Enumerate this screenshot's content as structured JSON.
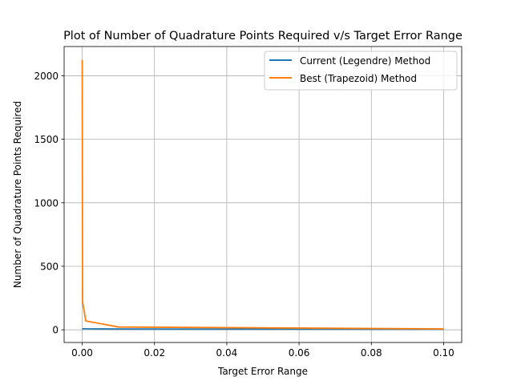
{
  "chart_data": {
    "type": "line",
    "title": "Plot of Number of Quadrature Points Required v/s Target Error Range",
    "xlabel": "Target Error Range",
    "ylabel": "Number of Quadrature Points Required",
    "xlim": [
      -0.005,
      0.105
    ],
    "ylim": [
      -100,
      2230
    ],
    "xticks": [
      0.0,
      0.02,
      0.04,
      0.06,
      0.08,
      0.1
    ],
    "xtick_labels": [
      "0.00",
      "0.02",
      "0.04",
      "0.06",
      "0.08",
      "0.10"
    ],
    "yticks": [
      0,
      500,
      1000,
      1500,
      2000
    ],
    "ytick_labels": [
      "0",
      "500",
      "1000",
      "1500",
      "2000"
    ],
    "grid": true,
    "legend_position": "upper-right",
    "series": [
      {
        "name": "Current (Legendre) Method",
        "color": "#1f77b4",
        "x": [
          1e-05,
          0.0001,
          0.001,
          0.01,
          0.1
        ],
        "y": [
          10,
          9,
          8,
          6,
          4
        ]
      },
      {
        "name": "Best (Trapezoid) Method",
        "color": "#ff7f0e",
        "x": [
          1e-05,
          0.0001,
          0.001,
          0.01,
          0.1
        ],
        "y": [
          2125,
          220,
          70,
          22,
          7
        ]
      }
    ]
  }
}
